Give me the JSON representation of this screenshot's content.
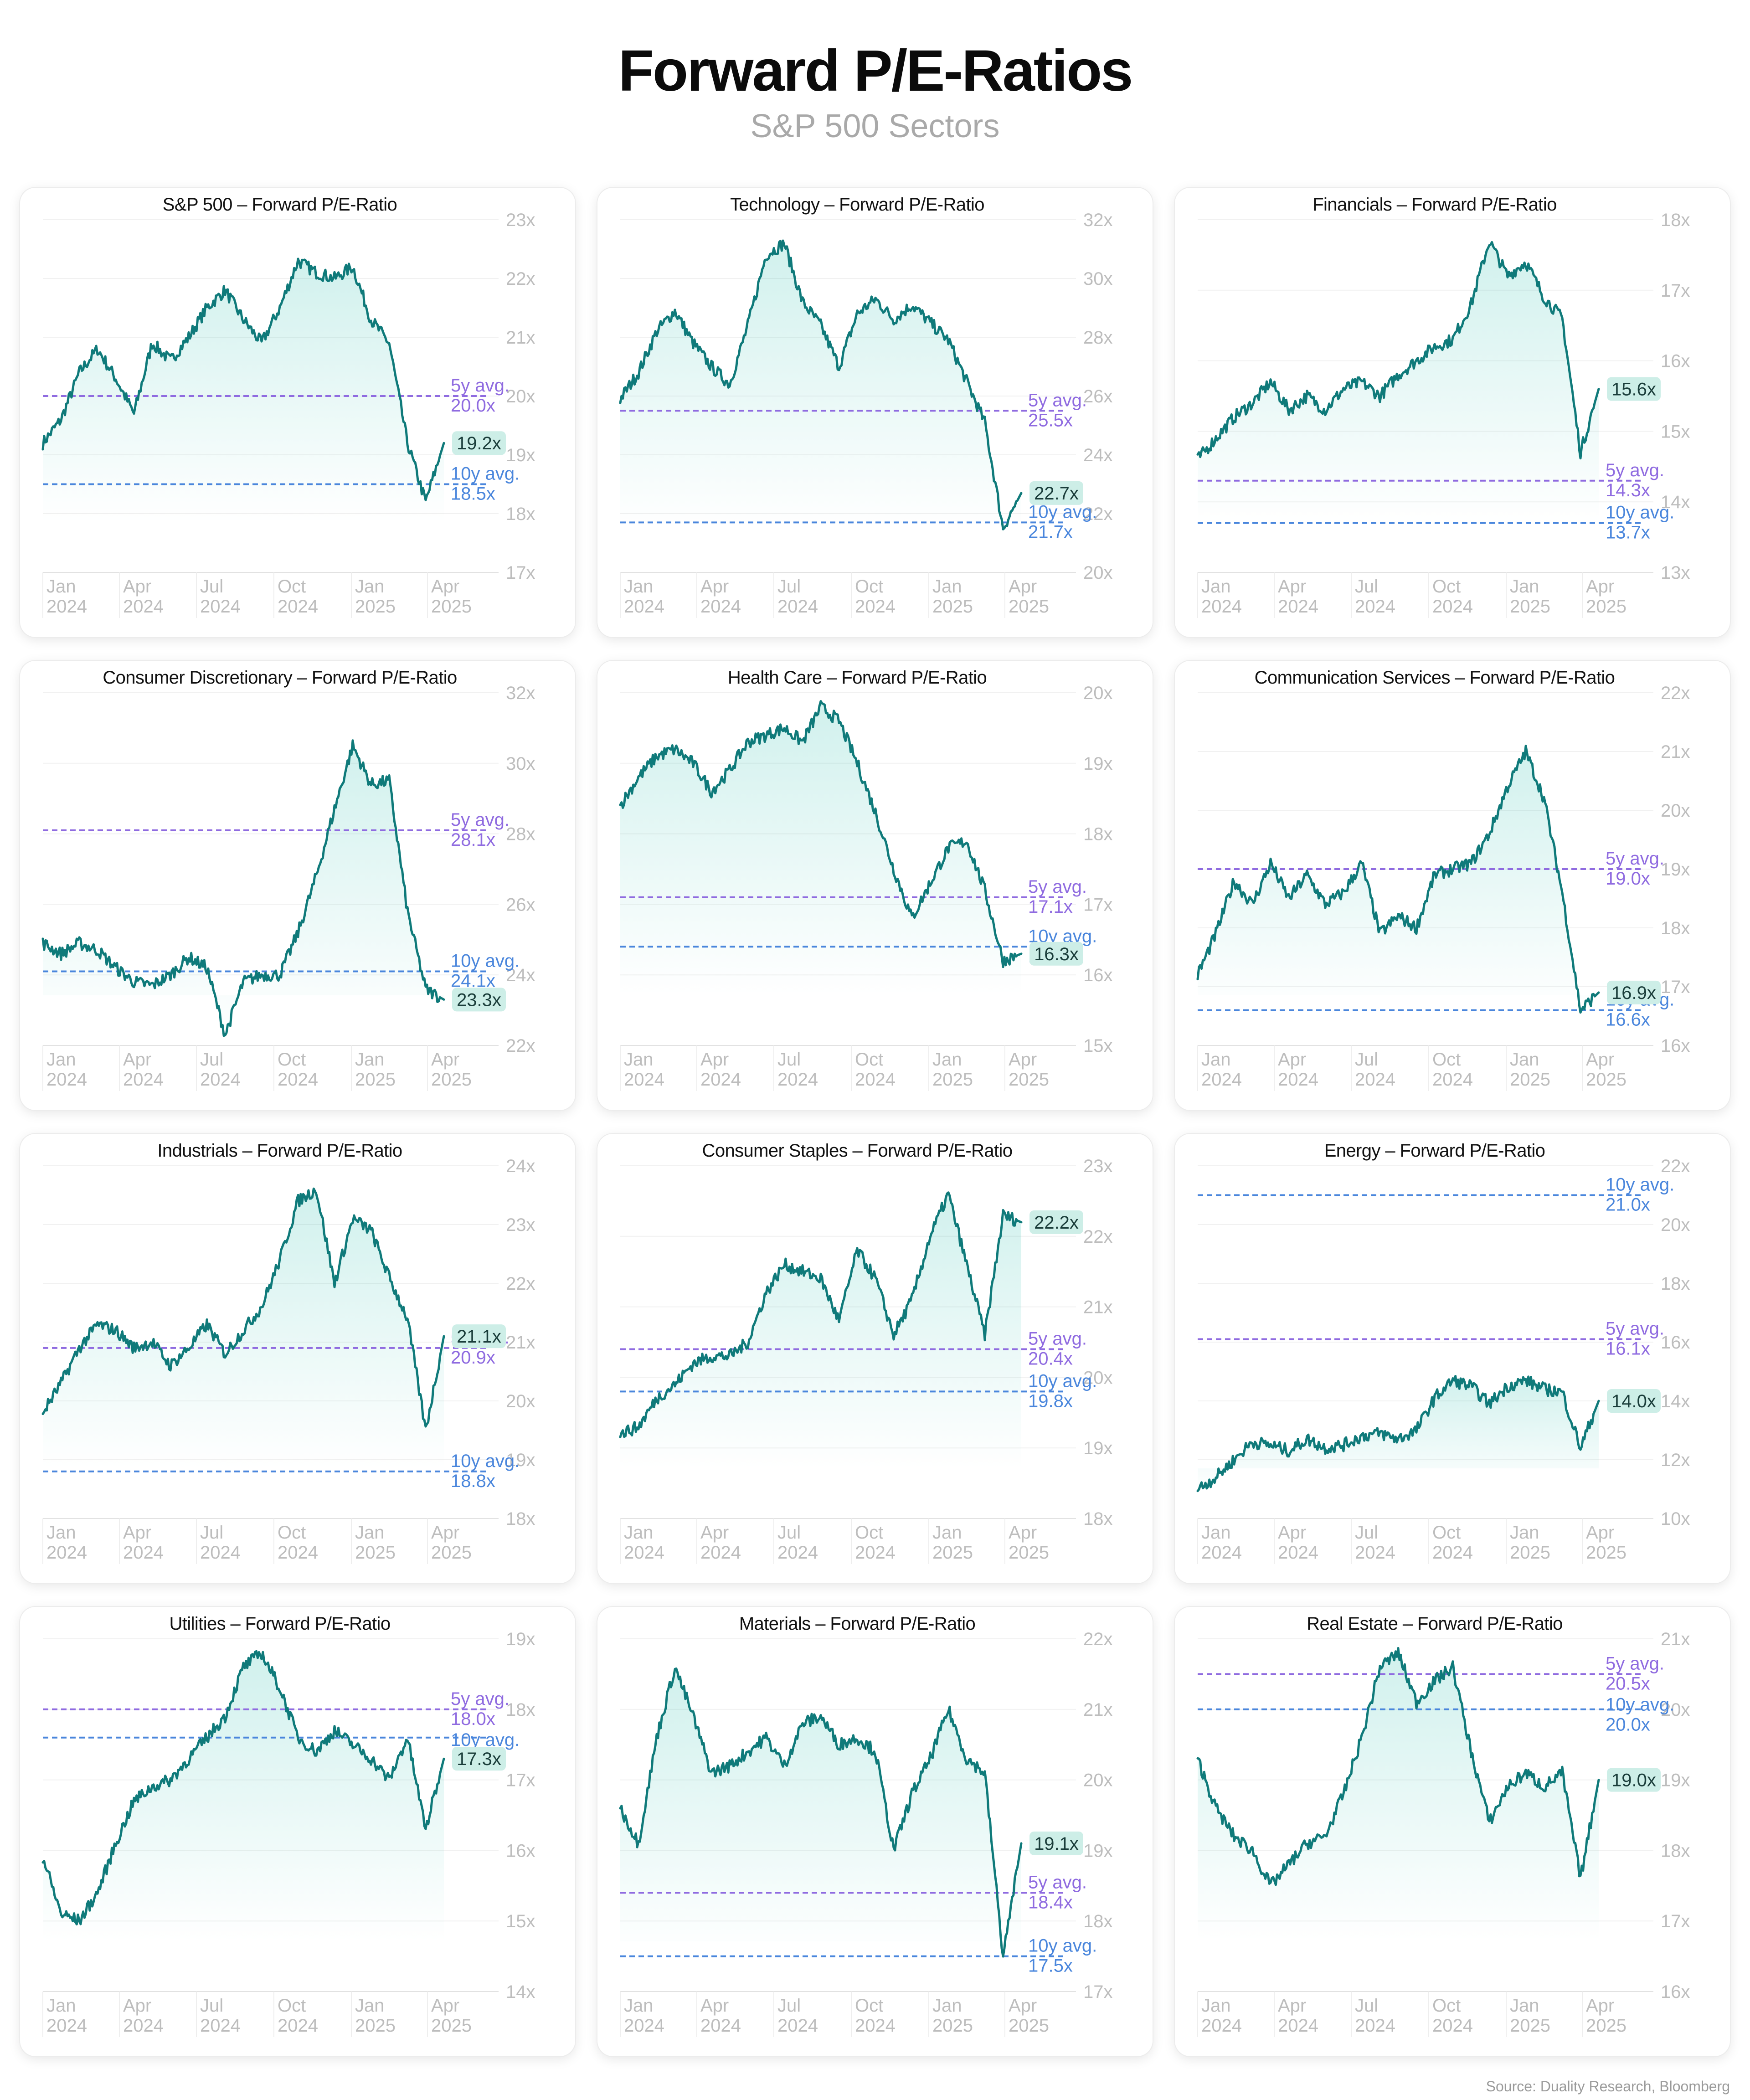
{
  "title": "Forward P/E-Ratios",
  "subtitle": "S&P 500 Sectors",
  "source": "Source: Duality Research, Bloomberg",
  "colors": {
    "line": "#0f7a7a",
    "fill": "#17b8a6",
    "avg5": "#8f6be0",
    "avg10": "#4a86dc",
    "badge_bg": "#cdeee7",
    "tick": "#bdbdbd"
  },
  "x_ticks": [
    [
      "Jan",
      "2024"
    ],
    [
      "Apr",
      "2024"
    ],
    [
      "Jul",
      "2024"
    ],
    [
      "Oct",
      "2024"
    ],
    [
      "Jan",
      "2025"
    ],
    [
      "Apr",
      "2025"
    ]
  ],
  "chart_data": [
    {
      "type": "line",
      "title": "S&P 500 – Forward P/E-Ratio",
      "ylim": [
        17,
        23
      ],
      "yticks": [
        "23x",
        "22x",
        "21x",
        "20x",
        "19x",
        "18x",
        "17x"
      ],
      "series": [
        {
          "values": [
            19.2,
            19.6,
            20.4,
            20.8,
            20.3,
            19.7,
            20.9,
            20.6,
            21.0,
            21.5,
            21.8,
            21.3,
            20.9,
            21.5,
            22.3,
            22.1,
            22.0,
            22.2,
            21.3,
            20.9,
            19.2,
            18.2,
            19.2
          ]
        }
      ],
      "current": "19.2x",
      "avg5": {
        "value": 20.0,
        "line1": "5y avg.",
        "line2": "20.0x"
      },
      "avg10": {
        "value": 18.5,
        "line1": "10y avg.",
        "line2": "18.5x"
      }
    },
    {
      "type": "line",
      "title": "Technology – Forward P/E-Ratio",
      "ylim": [
        20,
        32
      ],
      "yticks": [
        "32x",
        "30x",
        "28x",
        "26x",
        "24x",
        "22x",
        "20x"
      ],
      "series": [
        {
          "values": [
            25.9,
            26.8,
            28.2,
            28.9,
            27.8,
            27.0,
            26.4,
            28.4,
            30.8,
            31.2,
            29.2,
            28.4,
            27.0,
            28.8,
            29.3,
            28.6,
            29.1,
            28.5,
            27.9,
            26.5,
            25.1,
            21.5,
            22.7
          ]
        }
      ],
      "current": "22.7x",
      "avg5": {
        "value": 25.5,
        "line1": "5y avg.",
        "line2": "25.5x"
      },
      "avg10": {
        "value": 21.7,
        "line1": "10y avg.",
        "line2": "21.7x"
      }
    },
    {
      "type": "line",
      "title": "Financials – Forward P/E-Ratio",
      "ylim": [
        13,
        18
      ],
      "yticks": [
        "18x",
        "17x",
        "16x",
        "15x",
        "14x",
        "13x"
      ],
      "series": [
        {
          "values": [
            14.6,
            14.9,
            15.2,
            15.4,
            15.7,
            15.3,
            15.5,
            15.3,
            15.6,
            15.7,
            15.5,
            15.8,
            16.0,
            16.2,
            16.3,
            16.8,
            17.7,
            17.2,
            17.4,
            16.9,
            16.6,
            14.7,
            15.6
          ]
        }
      ],
      "current": "15.6x",
      "avg5": {
        "value": 14.3,
        "line1": "5y avg.",
        "line2": "14.3x"
      },
      "avg10": {
        "value": 13.7,
        "line1": "10y avg.",
        "line2": "13.7x"
      }
    },
    {
      "type": "line",
      "title": "Consumer Discretionary – Forward P/E-Ratio",
      "ylim": [
        22,
        32
      ],
      "yticks": [
        "32x",
        "30x",
        "28x",
        "26x",
        "24x",
        "22x"
      ],
      "series": [
        {
          "values": [
            24.9,
            24.6,
            24.9,
            24.7,
            24.2,
            23.8,
            23.7,
            24.0,
            24.5,
            24.2,
            22.3,
            23.8,
            24.0,
            24.0,
            25.2,
            26.8,
            28.7,
            30.5,
            29.4,
            29.5,
            25.8,
            23.6,
            23.3
          ]
        }
      ],
      "current": "23.3x",
      "avg5": {
        "value": 28.1,
        "line1": "5y avg.",
        "line2": "28.1x"
      },
      "avg10": {
        "value": 24.1,
        "line1": "10y avg.",
        "line2": "24.1x"
      }
    },
    {
      "type": "line",
      "title": "Health Care – Forward P/E-Ratio",
      "ylim": [
        15,
        20
      ],
      "yticks": [
        "20x",
        "19x",
        "18x",
        "17x",
        "16x",
        "15x"
      ],
      "series": [
        {
          "values": [
            18.4,
            18.8,
            19.1,
            19.2,
            19.0,
            18.6,
            18.9,
            19.3,
            19.4,
            19.5,
            19.3,
            19.8,
            19.6,
            19.0,
            18.3,
            17.5,
            16.8,
            17.3,
            17.8,
            17.9,
            17.2,
            16.2,
            16.3
          ]
        }
      ],
      "current": "16.3x",
      "avg5": {
        "value": 17.1,
        "line1": "5y avg.",
        "line2": "17.1x"
      },
      "avg10": {
        "value": 16.4,
        "line1": "10y avg.",
        "line2": "16.4x"
      }
    },
    {
      "type": "line",
      "title": "Communication Services – Forward P/E-Ratio",
      "ylim": [
        16,
        22
      ],
      "yticks": [
        "22x",
        "21x",
        "20x",
        "19x",
        "18x",
        "17x",
        "16x"
      ],
      "series": [
        {
          "values": [
            17.2,
            17.9,
            18.8,
            18.4,
            19.1,
            18.5,
            18.9,
            18.4,
            18.6,
            19.1,
            17.9,
            18.2,
            18.0,
            18.9,
            19.0,
            19.1,
            19.6,
            20.4,
            21.0,
            20.2,
            18.6,
            16.6,
            16.9
          ]
        }
      ],
      "current": "16.9x",
      "avg5": {
        "value": 19.0,
        "line1": "5y avg.",
        "line2": "19.0x"
      },
      "avg10": {
        "value": 16.6,
        "line1": "10y avg.",
        "line2": "16.6x"
      }
    },
    {
      "type": "line",
      "title": "Industrials – Forward P/E-Ratio",
      "ylim": [
        18,
        24
      ],
      "yticks": [
        "24x",
        "23x",
        "22x",
        "21x",
        "20x",
        "19x",
        "18x"
      ],
      "series": [
        {
          "values": [
            19.8,
            20.3,
            20.9,
            21.3,
            21.2,
            20.9,
            21.0,
            20.6,
            20.9,
            21.3,
            20.8,
            21.2,
            21.6,
            22.4,
            23.4,
            23.6,
            22.0,
            23.1,
            22.9,
            22.1,
            21.4,
            19.5,
            21.1
          ]
        }
      ],
      "current": "21.1x",
      "avg5": {
        "value": 20.9,
        "line1": "5y avg.",
        "line2": "20.9x"
      },
      "avg10": {
        "value": 18.8,
        "line1": "10y avg.",
        "line2": "18.8x"
      }
    },
    {
      "type": "line",
      "title": "Consumer Staples – Forward P/E-Ratio",
      "ylim": [
        18,
        23
      ],
      "yticks": [
        "23x",
        "22x",
        "21x",
        "20x",
        "19x",
        "18x"
      ],
      "series": [
        {
          "values": [
            19.2,
            19.3,
            19.7,
            19.9,
            20.2,
            20.3,
            20.3,
            20.5,
            21.2,
            21.6,
            21.5,
            21.4,
            20.8,
            21.8,
            21.4,
            20.6,
            21.1,
            22.0,
            22.6,
            21.6,
            20.6,
            22.3,
            22.2
          ]
        }
      ],
      "current": "22.2x",
      "avg5": {
        "value": 20.4,
        "line1": "5y avg.",
        "line2": "20.4x"
      },
      "avg10": {
        "value": 19.8,
        "line1": "10y avg.",
        "line2": "19.8x"
      }
    },
    {
      "type": "line",
      "title": "Energy – Forward P/E-Ratio",
      "ylim": [
        10,
        22
      ],
      "yticks": [
        "22x",
        "20x",
        "18x",
        "16x",
        "14x",
        "12x",
        "10x"
      ],
      "series": [
        {
          "values": [
            11.0,
            11.4,
            12.0,
            12.6,
            12.5,
            12.3,
            12.7,
            12.4,
            12.5,
            12.8,
            12.9,
            12.7,
            13.0,
            14.1,
            14.7,
            14.5,
            13.9,
            14.5,
            14.7,
            14.4,
            14.3,
            12.4,
            14.0
          ]
        }
      ],
      "current": "14.0x",
      "avg5": {
        "value": 16.1,
        "line1": "5y avg.",
        "line2": "16.1x"
      },
      "avg10": {
        "value": 21.0,
        "line1": "10y avg.",
        "line2": "21.0x"
      }
    },
    {
      "type": "line",
      "title": "Utilities – Forward P/E-Ratio",
      "ylim": [
        14,
        19
      ],
      "yticks": [
        "19x",
        "18x",
        "17x",
        "16x",
        "15x",
        "14x"
      ],
      "series": [
        {
          "values": [
            15.9,
            15.1,
            15.0,
            15.4,
            16.1,
            16.7,
            16.9,
            17.0,
            17.3,
            17.6,
            17.9,
            18.6,
            18.8,
            18.3,
            17.6,
            17.4,
            17.7,
            17.5,
            17.3,
            17.0,
            17.6,
            16.3,
            17.3
          ]
        }
      ],
      "current": "17.3x",
      "avg5": {
        "value": 18.0,
        "line1": "5y avg.",
        "line2": "18.0x"
      },
      "avg10": {
        "value": 17.6,
        "line1": "10y avg.",
        "line2": "17.6x"
      }
    },
    {
      "type": "line",
      "title": "Materials – Forward P/E-Ratio",
      "ylim": [
        17,
        22
      ],
      "yticks": [
        "22x",
        "21x",
        "20x",
        "19x",
        "18x",
        "17x"
      ],
      "series": [
        {
          "values": [
            19.6,
            19.1,
            20.6,
            21.6,
            20.9,
            20.1,
            20.2,
            20.4,
            20.6,
            20.2,
            20.8,
            20.9,
            20.5,
            20.6,
            20.4,
            19.0,
            19.8,
            20.3,
            21.0,
            20.3,
            20.1,
            17.5,
            19.1
          ]
        }
      ],
      "current": "19.1x",
      "avg5": {
        "value": 18.4,
        "line1": "5y avg.",
        "line2": "18.4x"
      },
      "avg10": {
        "value": 17.5,
        "line1": "10y avg.",
        "line2": "17.5x"
      }
    },
    {
      "type": "line",
      "title": "Real Estate – Forward P/E-Ratio",
      "ylim": [
        16,
        21
      ],
      "yticks": [
        "21x",
        "20x",
        "19x",
        "18x",
        "17x",
        "16x"
      ],
      "series": [
        {
          "values": [
            19.3,
            18.6,
            18.2,
            18.0,
            17.5,
            17.8,
            18.1,
            18.2,
            18.8,
            19.6,
            20.6,
            20.8,
            20.1,
            20.4,
            20.6,
            19.4,
            18.4,
            18.9,
            19.1,
            18.9,
            19.1,
            17.6,
            19.0
          ]
        }
      ],
      "current": "19.0x",
      "avg5": {
        "value": 20.5,
        "line1": "5y avg.",
        "line2": "20.5x"
      },
      "avg10": {
        "value": 20.0,
        "line1": "10y avg.",
        "line2": "20.0x"
      }
    }
  ]
}
